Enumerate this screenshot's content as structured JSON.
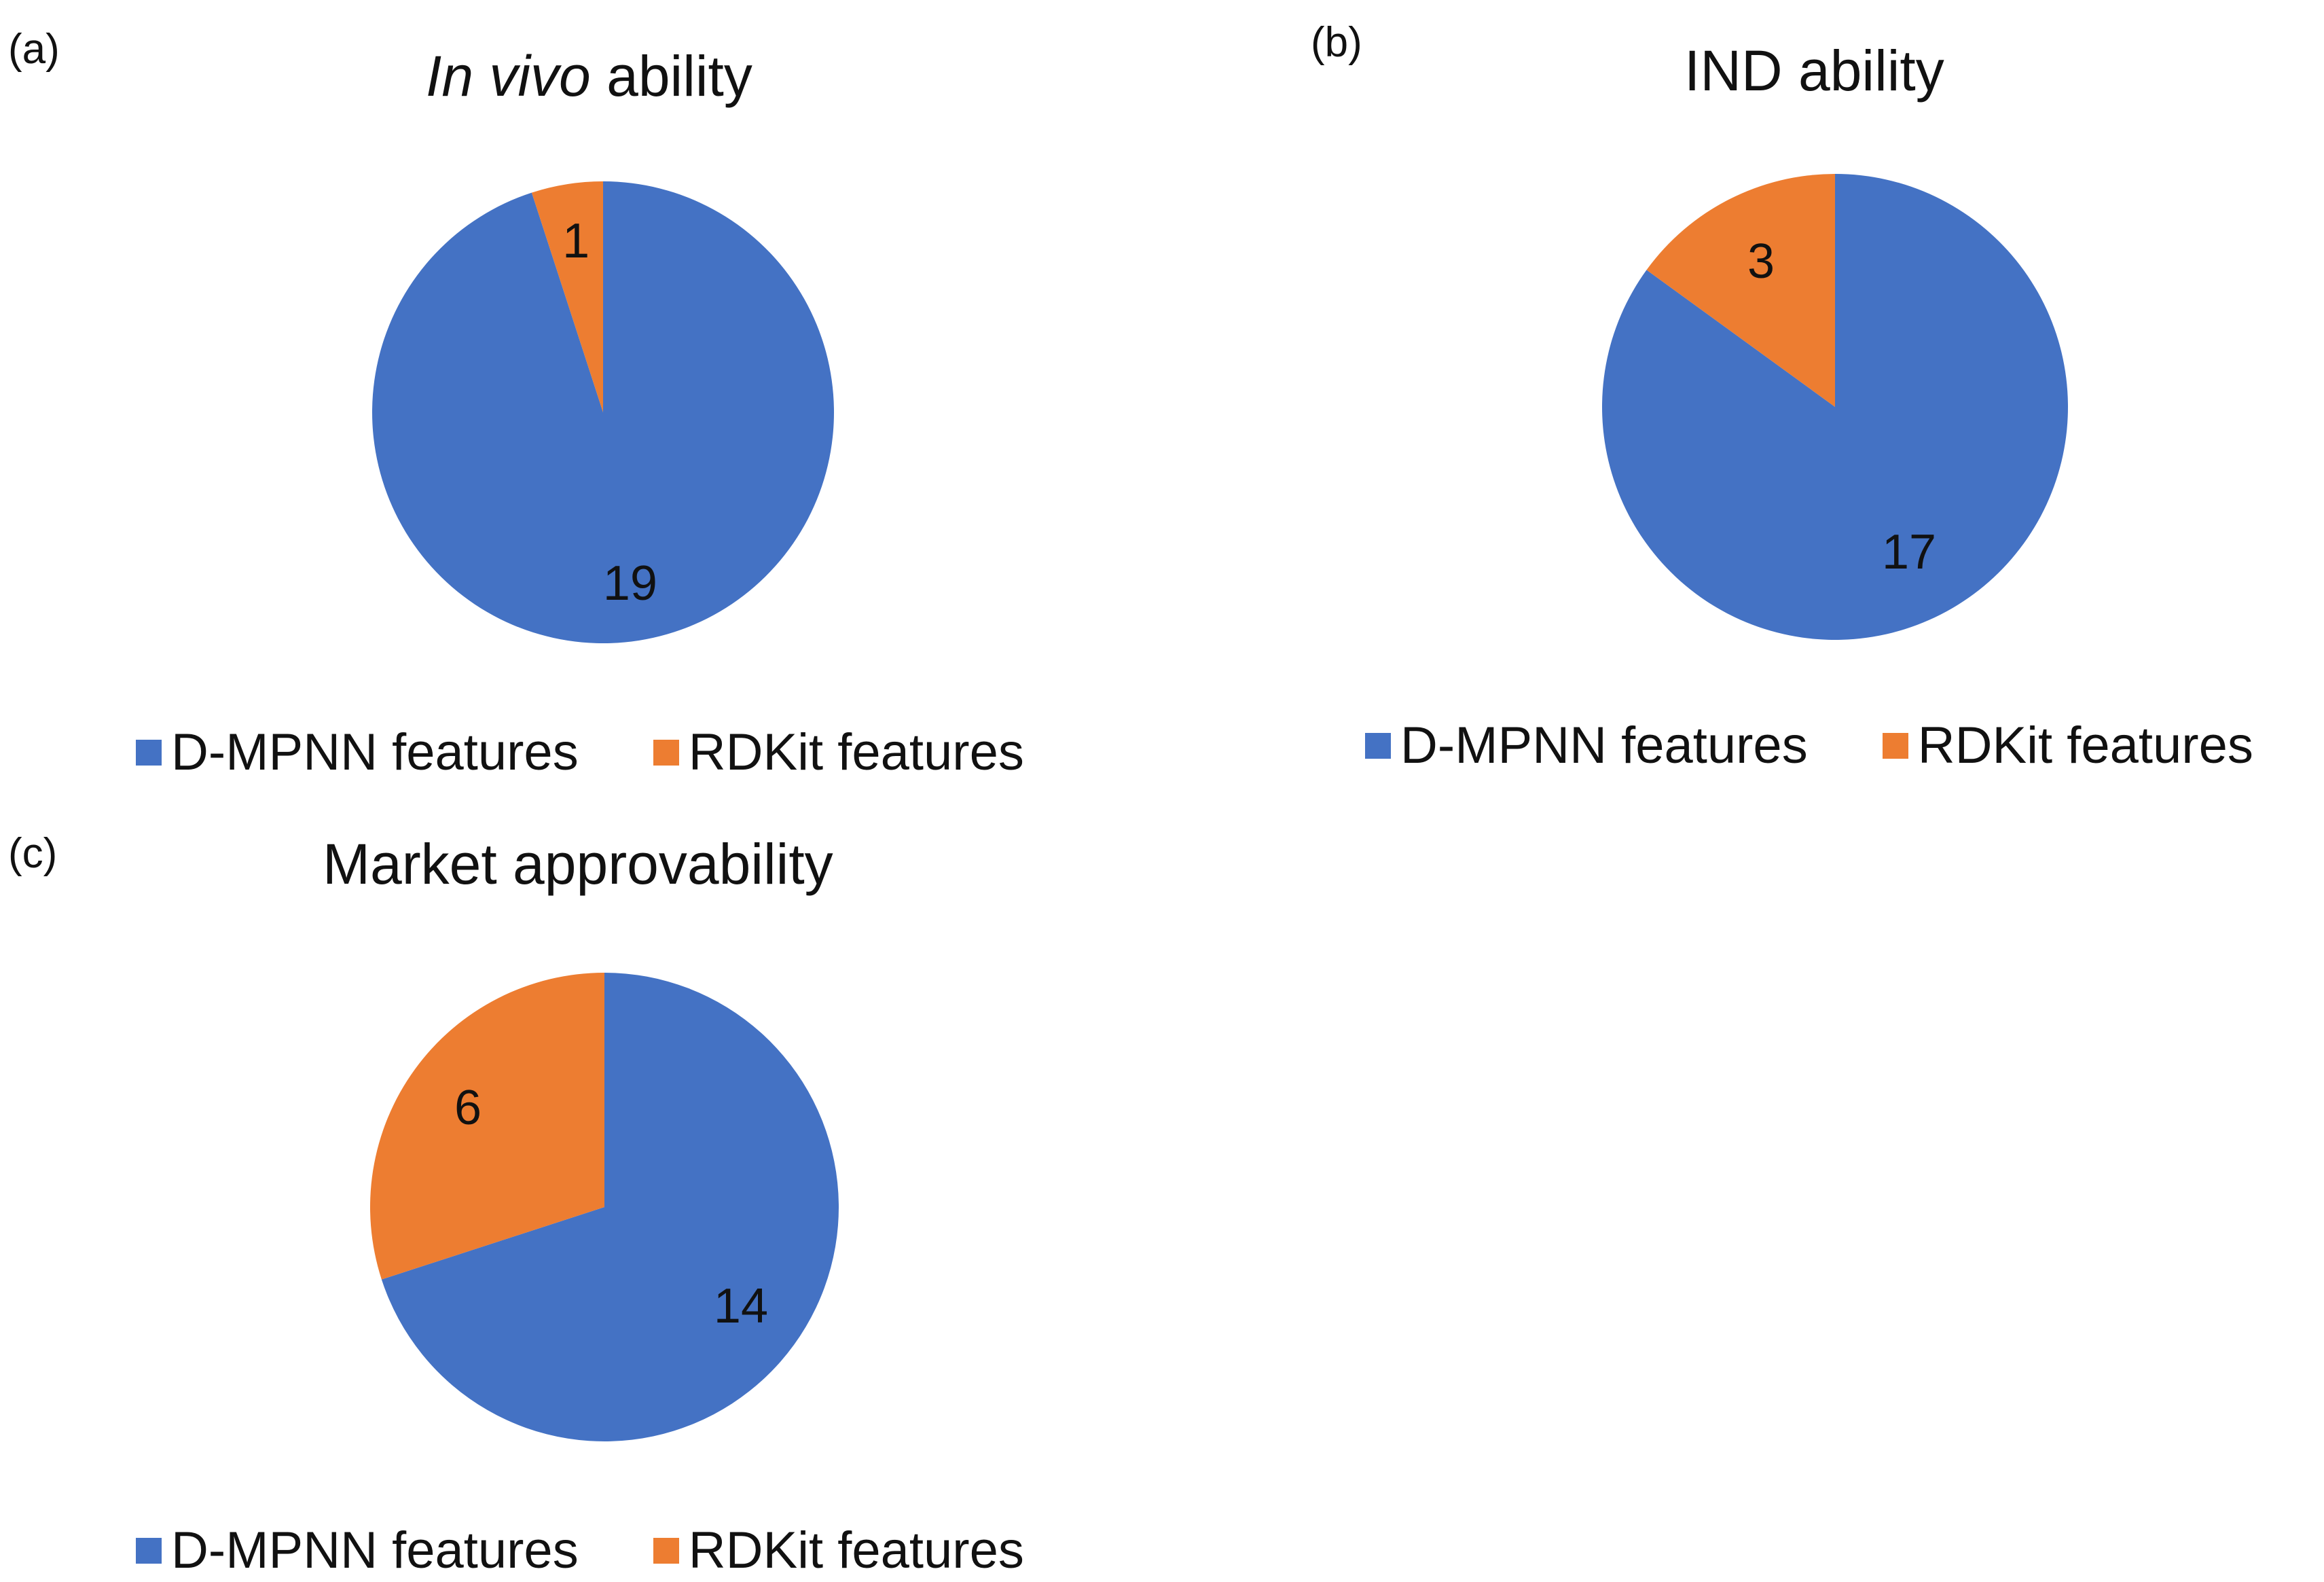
{
  "colors": {
    "dmpnn": "#4472C4",
    "rdkit": "#ED7D31",
    "text": "#111111",
    "background": "#ffffff"
  },
  "chart_data": [
    {
      "type": "pie",
      "panel_label": "(a)",
      "title_italic": "In vivo",
      "title_rest": " ability",
      "categories": [
        "D-MPNN features",
        "RDKit features"
      ],
      "values": [
        19,
        1
      ],
      "value_labels": [
        "19",
        "1"
      ],
      "legend_placement": "bottom"
    },
    {
      "type": "pie",
      "panel_label": "(b)",
      "title_italic": "",
      "title_rest": "IND  ability",
      "categories": [
        "D-MPNN features",
        "RDKit features"
      ],
      "values": [
        17,
        3
      ],
      "value_labels": [
        "17",
        "3"
      ],
      "legend_placement": "bottom"
    },
    {
      "type": "pie",
      "panel_label": "(c)",
      "title_italic": "",
      "title_rest": "Market approvability",
      "categories": [
        "D-MPNN features",
        "RDKit features"
      ],
      "values": [
        14,
        6
      ],
      "value_labels": [
        "14",
        "6"
      ],
      "legend_placement": "bottom"
    }
  ]
}
